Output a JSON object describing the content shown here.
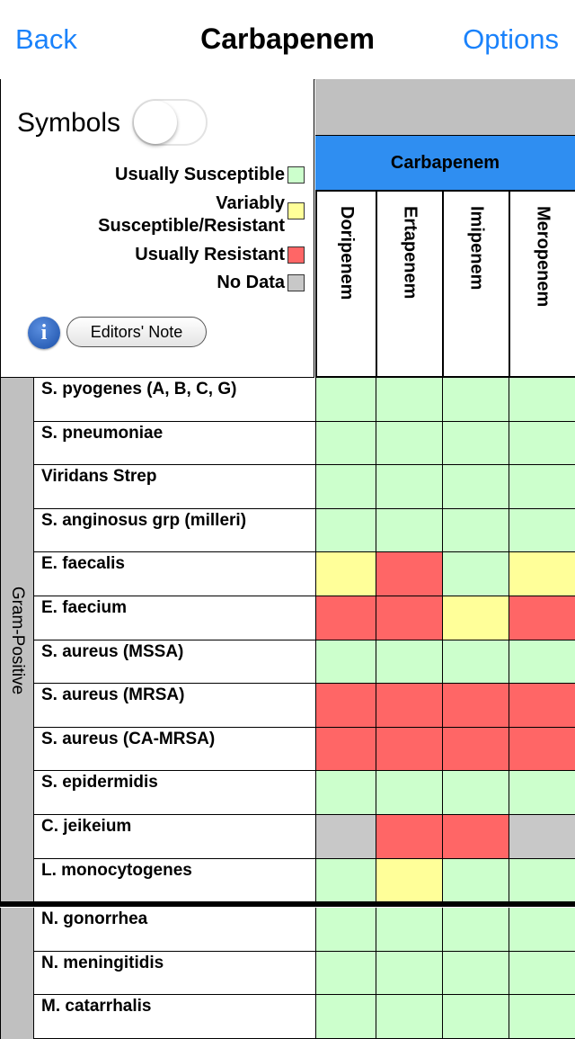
{
  "nav": {
    "back": "Back",
    "title": "Carbapenem",
    "options": "Options"
  },
  "legend": {
    "symbols_label": "Symbols",
    "toggle_on": false,
    "items": [
      {
        "label": "Usually Susceptible",
        "color": "#ccffcc"
      },
      {
        "label_line1": "Variably",
        "label_line2": "Susceptible/Resistant",
        "color": "#ffff99"
      },
      {
        "label": "Usually Resistant",
        "color": "#ff6666"
      },
      {
        "label": "No Data",
        "color": "#c8c8c8"
      }
    ],
    "info_icon": "i",
    "editors_note": "Editors' Note"
  },
  "header": {
    "drug_class": "Carbapenem",
    "drugs": [
      "Doripenem",
      "Ertapenem",
      "Imipenem",
      "Meropenem"
    ]
  },
  "colors": {
    "S": "#ccffcc",
    "V": "#ffff99",
    "R": "#ff6666",
    "N": "#c8c8c8",
    "blue": "#2f8ef1",
    "link": "#1a82fb"
  },
  "groups": [
    {
      "name": "Gram-Positive",
      "rows": [
        {
          "organism": "S. pyogenes (A, B, C, G)",
          "values": [
            "S",
            "S",
            "S",
            "S"
          ]
        },
        {
          "organism": "S. pneumoniae",
          "values": [
            "S",
            "S",
            "S",
            "S"
          ]
        },
        {
          "organism": "Viridans Strep",
          "values": [
            "S",
            "S",
            "S",
            "S"
          ]
        },
        {
          "organism": "S. anginosus grp (milleri)",
          "values": [
            "S",
            "S",
            "S",
            "S"
          ]
        },
        {
          "organism": "E. faecalis",
          "values": [
            "V",
            "R",
            "S",
            "V"
          ]
        },
        {
          "organism": "E. faecium",
          "values": [
            "R",
            "R",
            "V",
            "R"
          ]
        },
        {
          "organism": "S. aureus (MSSA)",
          "values": [
            "S",
            "S",
            "S",
            "S"
          ]
        },
        {
          "organism": "S. aureus (MRSA)",
          "values": [
            "R",
            "R",
            "R",
            "R"
          ]
        },
        {
          "organism": "S. aureus (CA-MRSA)",
          "values": [
            "R",
            "R",
            "R",
            "R"
          ]
        },
        {
          "organism": "S. epidermidis",
          "values": [
            "S",
            "S",
            "S",
            "S"
          ]
        },
        {
          "organism": "C. jeikeium",
          "values": [
            "N",
            "R",
            "R",
            "N"
          ]
        },
        {
          "organism": "L. monocytogenes",
          "values": [
            "S",
            "V",
            "S",
            "S"
          ]
        }
      ]
    },
    {
      "name": "",
      "rows": [
        {
          "organism": "N. gonorrhea",
          "values": [
            "S",
            "S",
            "S",
            "S"
          ]
        },
        {
          "organism": "N. meningitidis",
          "values": [
            "S",
            "S",
            "S",
            "S"
          ]
        },
        {
          "organism": "M. catarrhalis",
          "values": [
            "S",
            "S",
            "S",
            "S"
          ]
        }
      ]
    }
  ]
}
